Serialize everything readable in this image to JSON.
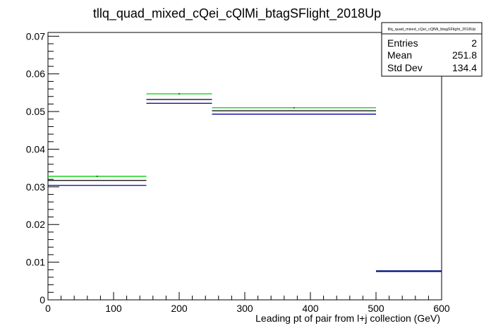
{
  "chart_data": {
    "type": "histogram",
    "title": "tllq_quad_mixed_cQei_cQlMi_btagSFlight_2018Up",
    "xlabel": "Leading pt of pair from l+j collection (GeV)",
    "ylabel": "",
    "xlim": [
      0,
      600
    ],
    "ylim": [
      0,
      0.071
    ],
    "x_ticks": [
      0,
      100,
      200,
      300,
      400,
      500,
      600
    ],
    "y_ticks": [
      0,
      0.01,
      0.02,
      0.03,
      0.04,
      0.05,
      0.06,
      0.07
    ],
    "x_tick_labels": [
      "0",
      "100",
      "200",
      "300",
      "400",
      "500",
      "600"
    ],
    "y_tick_labels": [
      "0",
      "0.01",
      "0.02",
      "0.03",
      "0.04",
      "0.05",
      "0.06",
      "0.07"
    ],
    "bin_edges": [
      0,
      150,
      250,
      500,
      600
    ],
    "series": [
      {
        "color": "#00cc00",
        "values": [
          0.0328,
          0.0547,
          0.051,
          0.0076
        ]
      },
      {
        "color": "#000000",
        "values": [
          0.0317,
          0.0532,
          0.0502,
          0.0076
        ]
      },
      {
        "color": "#000099",
        "values": [
          0.0304,
          0.0522,
          0.0493,
          0.0076
        ]
      }
    ],
    "stats_box": {
      "name": "tllq_quad_mixed_cQei_cQlMi_btagSFlight_2018Up",
      "rows": [
        {
          "label": "Entries",
          "value": "2"
        },
        {
          "label": "Mean",
          "value": "251.8"
        },
        {
          "label": "Std Dev",
          "value": "134.4"
        }
      ]
    },
    "grid": false,
    "legend": "none"
  }
}
